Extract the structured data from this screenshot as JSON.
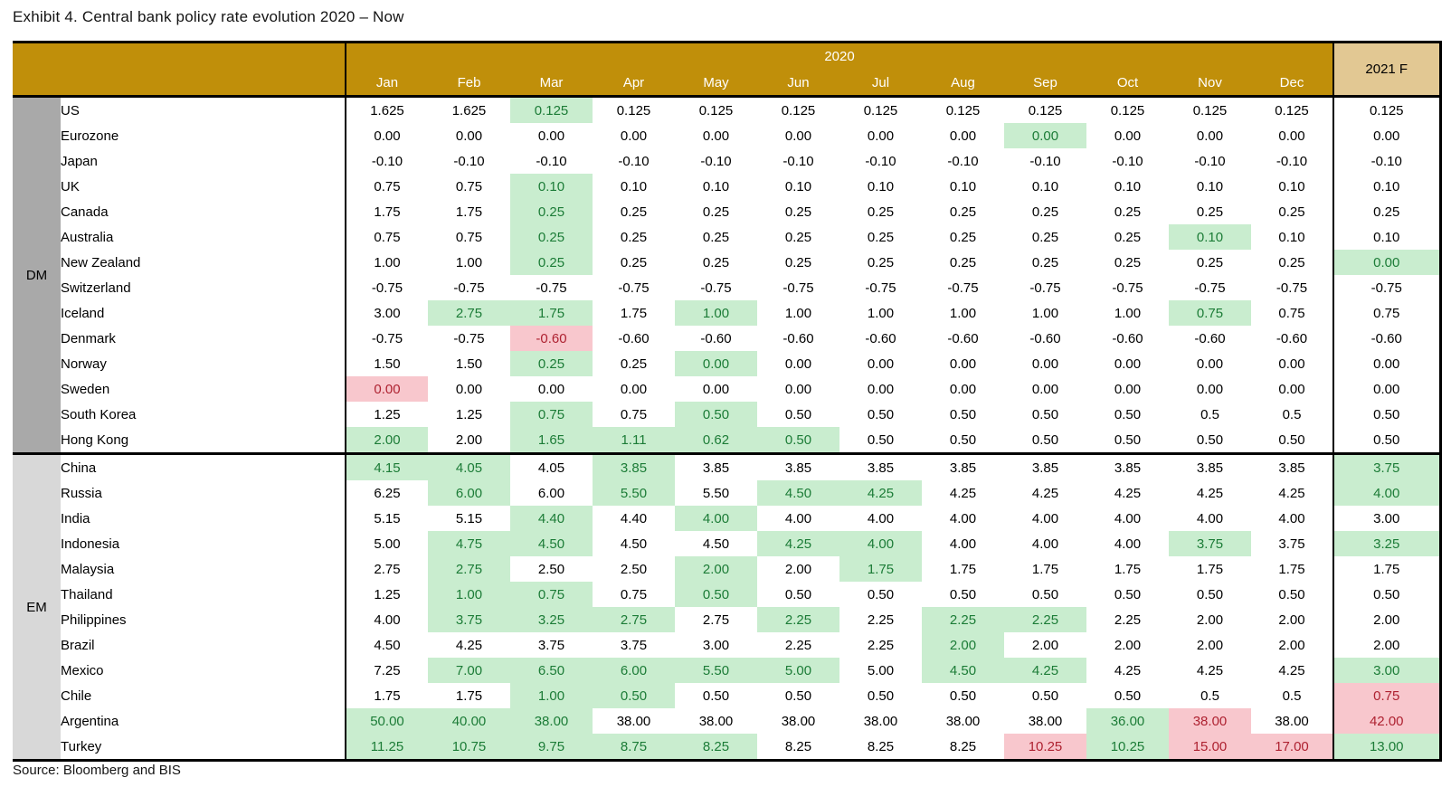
{
  "title": "Exhibit 4. Central bank policy rate evolution 2020 – Now",
  "source": "Source: Bloomberg and BIS",
  "colors": {
    "header_gold": "#C08F0A",
    "forecast_tan": "#E2C893",
    "cut_highlight_bg": "#C9EDCF",
    "cut_highlight_text": "#1C7C37",
    "hike_highlight_bg": "#F8C7CD",
    "hike_highlight_text": "#AE2231",
    "dm_band": "#A9A9A9",
    "em_band": "#D8D8D8"
  },
  "table": {
    "year_header": "2020",
    "forecast_header": "2021 F",
    "months": [
      "Jan",
      "Feb",
      "Mar",
      "Apr",
      "May",
      "Jun",
      "Jul",
      "Aug",
      "Sep",
      "Oct",
      "Nov",
      "Dec"
    ],
    "groups": [
      {
        "label": "DM",
        "rows": [
          {
            "country": "US",
            "values": [
              "1.625",
              "1.625",
              "0.125",
              "0.125",
              "0.125",
              "0.125",
              "0.125",
              "0.125",
              "0.125",
              "0.125",
              "0.125",
              "0.125",
              "0.125"
            ],
            "marks": {
              "2": "g"
            }
          },
          {
            "country": "Eurozone",
            "values": [
              "0.00",
              "0.00",
              "0.00",
              "0.00",
              "0.00",
              "0.00",
              "0.00",
              "0.00",
              "0.00",
              "0.00",
              "0.00",
              "0.00",
              "0.00"
            ],
            "marks": {
              "8": "g"
            }
          },
          {
            "country": "Japan",
            "values": [
              "-0.10",
              "-0.10",
              "-0.10",
              "-0.10",
              "-0.10",
              "-0.10",
              "-0.10",
              "-0.10",
              "-0.10",
              "-0.10",
              "-0.10",
              "-0.10",
              "-0.10"
            ],
            "marks": {}
          },
          {
            "country": "UK",
            "values": [
              "0.75",
              "0.75",
              "0.10",
              "0.10",
              "0.10",
              "0.10",
              "0.10",
              "0.10",
              "0.10",
              "0.10",
              "0.10",
              "0.10",
              "0.10"
            ],
            "marks": {
              "2": "g"
            }
          },
          {
            "country": "Canada",
            "values": [
              "1.75",
              "1.75",
              "0.25",
              "0.25",
              "0.25",
              "0.25",
              "0.25",
              "0.25",
              "0.25",
              "0.25",
              "0.25",
              "0.25",
              "0.25"
            ],
            "marks": {
              "2": "g"
            }
          },
          {
            "country": "Australia",
            "values": [
              "0.75",
              "0.75",
              "0.25",
              "0.25",
              "0.25",
              "0.25",
              "0.25",
              "0.25",
              "0.25",
              "0.25",
              "0.10",
              "0.10",
              "0.10"
            ],
            "marks": {
              "2": "g",
              "10": "g"
            }
          },
          {
            "country": "New Zealand",
            "values": [
              "1.00",
              "1.00",
              "0.25",
              "0.25",
              "0.25",
              "0.25",
              "0.25",
              "0.25",
              "0.25",
              "0.25",
              "0.25",
              "0.25",
              "0.00"
            ],
            "marks": {
              "2": "g",
              "12": "g"
            }
          },
          {
            "country": "Switzerland",
            "values": [
              "-0.75",
              "-0.75",
              "-0.75",
              "-0.75",
              "-0.75",
              "-0.75",
              "-0.75",
              "-0.75",
              "-0.75",
              "-0.75",
              "-0.75",
              "-0.75",
              "-0.75"
            ],
            "marks": {}
          },
          {
            "country": "Iceland",
            "values": [
              "3.00",
              "2.75",
              "1.75",
              "1.75",
              "1.00",
              "1.00",
              "1.00",
              "1.00",
              "1.00",
              "1.00",
              "0.75",
              "0.75",
              "0.75"
            ],
            "marks": {
              "1": "g",
              "2": "g",
              "4": "g",
              "10": "g"
            }
          },
          {
            "country": "Denmark",
            "values": [
              "-0.75",
              "-0.75",
              "-0.60",
              "-0.60",
              "-0.60",
              "-0.60",
              "-0.60",
              "-0.60",
              "-0.60",
              "-0.60",
              "-0.60",
              "-0.60",
              "-0.60"
            ],
            "marks": {
              "2": "r"
            }
          },
          {
            "country": "Norway",
            "values": [
              "1.50",
              "1.50",
              "0.25",
              "0.25",
              "0.00",
              "0.00",
              "0.00",
              "0.00",
              "0.00",
              "0.00",
              "0.00",
              "0.00",
              "0.00"
            ],
            "marks": {
              "2": "g",
              "4": "g"
            }
          },
          {
            "country": "Sweden",
            "values": [
              "0.00",
              "0.00",
              "0.00",
              "0.00",
              "0.00",
              "0.00",
              "0.00",
              "0.00",
              "0.00",
              "0.00",
              "0.00",
              "0.00",
              "0.00"
            ],
            "marks": {
              "0": "r"
            }
          },
          {
            "country": "South Korea",
            "values": [
              "1.25",
              "1.25",
              "0.75",
              "0.75",
              "0.50",
              "0.50",
              "0.50",
              "0.50",
              "0.50",
              "0.50",
              "0.5",
              "0.5",
              "0.50"
            ],
            "marks": {
              "2": "g",
              "4": "g"
            }
          },
          {
            "country": "Hong Kong",
            "values": [
              "2.00",
              "2.00",
              "1.65",
              "1.11",
              "0.62",
              "0.50",
              "0.50",
              "0.50",
              "0.50",
              "0.50",
              "0.50",
              "0.50",
              "0.50"
            ],
            "marks": {
              "0": "g",
              "2": "g",
              "3": "g",
              "4": "g",
              "5": "g"
            }
          }
        ]
      },
      {
        "label": "EM",
        "rows": [
          {
            "country": "China",
            "values": [
              "4.15",
              "4.05",
              "4.05",
              "3.85",
              "3.85",
              "3.85",
              "3.85",
              "3.85",
              "3.85",
              "3.85",
              "3.85",
              "3.85",
              "3.75"
            ],
            "marks": {
              "0": "g",
              "1": "g",
              "3": "g",
              "12": "g"
            }
          },
          {
            "country": "Russia",
            "values": [
              "6.25",
              "6.00",
              "6.00",
              "5.50",
              "5.50",
              "4.50",
              "4.25",
              "4.25",
              "4.25",
              "4.25",
              "4.25",
              "4.25",
              "4.00"
            ],
            "marks": {
              "1": "g",
              "3": "g",
              "5": "g",
              "6": "g",
              "12": "g"
            }
          },
          {
            "country": "India",
            "values": [
              "5.15",
              "5.15",
              "4.40",
              "4.40",
              "4.00",
              "4.00",
              "4.00",
              "4.00",
              "4.00",
              "4.00",
              "4.00",
              "4.00",
              "3.00"
            ],
            "marks": {
              "2": "g",
              "4": "g"
            }
          },
          {
            "country": "Indonesia",
            "values": [
              "5.00",
              "4.75",
              "4.50",
              "4.50",
              "4.50",
              "4.25",
              "4.00",
              "4.00",
              "4.00",
              "4.00",
              "3.75",
              "3.75",
              "3.25"
            ],
            "marks": {
              "1": "g",
              "2": "g",
              "5": "g",
              "6": "g",
              "10": "g",
              "12": "g"
            }
          },
          {
            "country": "Malaysia",
            "values": [
              "2.75",
              "2.75",
              "2.50",
              "2.50",
              "2.00",
              "2.00",
              "1.75",
              "1.75",
              "1.75",
              "1.75",
              "1.75",
              "1.75",
              "1.75"
            ],
            "marks": {
              "1": "g",
              "4": "g",
              "6": "g"
            }
          },
          {
            "country": "Thailand",
            "values": [
              "1.25",
              "1.00",
              "0.75",
              "0.75",
              "0.50",
              "0.50",
              "0.50",
              "0.50",
              "0.50",
              "0.50",
              "0.50",
              "0.50",
              "0.50"
            ],
            "marks": {
              "1": "g",
              "2": "g",
              "4": "g"
            }
          },
          {
            "country": "Philippines",
            "values": [
              "4.00",
              "3.75",
              "3.25",
              "2.75",
              "2.75",
              "2.25",
              "2.25",
              "2.25",
              "2.25",
              "2.25",
              "2.00",
              "2.00",
              "2.00"
            ],
            "marks": {
              "1": "g",
              "2": "g",
              "3": "g",
              "5": "g",
              "7": "g",
              "8": "g"
            }
          },
          {
            "country": "Brazil",
            "values": [
              "4.50",
              "4.25",
              "3.75",
              "3.75",
              "3.00",
              "2.25",
              "2.25",
              "2.00",
              "2.00",
              "2.00",
              "2.00",
              "2.00",
              "2.00"
            ],
            "marks": {
              "7": "g"
            }
          },
          {
            "country": "Mexico",
            "values": [
              "7.25",
              "7.00",
              "6.50",
              "6.00",
              "5.50",
              "5.00",
              "5.00",
              "4.50",
              "4.25",
              "4.25",
              "4.25",
              "4.25",
              "3.00"
            ],
            "marks": {
              "1": "g",
              "2": "g",
              "3": "g",
              "4": "g",
              "5": "g",
              "7": "g",
              "8": "g",
              "12": "g"
            }
          },
          {
            "country": "Chile",
            "values": [
              "1.75",
              "1.75",
              "1.00",
              "0.50",
              "0.50",
              "0.50",
              "0.50",
              "0.50",
              "0.50",
              "0.50",
              "0.5",
              "0.5",
              "0.75"
            ],
            "marks": {
              "2": "g",
              "3": "g",
              "12": "r"
            }
          },
          {
            "country": "Argentina",
            "values": [
              "50.00",
              "40.00",
              "38.00",
              "38.00",
              "38.00",
              "38.00",
              "38.00",
              "38.00",
              "38.00",
              "36.00",
              "38.00",
              "38.00",
              "42.00"
            ],
            "marks": {
              "0": "g",
              "1": "g",
              "2": "g",
              "9": "g",
              "10": "r",
              "12": "r"
            }
          },
          {
            "country": "Turkey",
            "values": [
              "11.25",
              "10.75",
              "9.75",
              "8.75",
              "8.25",
              "8.25",
              "8.25",
              "8.25",
              "10.25",
              "10.25",
              "15.00",
              "17.00",
              "13.00"
            ],
            "marks": {
              "0": "g",
              "1": "g",
              "2": "g",
              "3": "g",
              "4": "g",
              "8": "r",
              "9": "g",
              "10": "r",
              "11": "r",
              "12": "g"
            }
          }
        ]
      }
    ]
  }
}
